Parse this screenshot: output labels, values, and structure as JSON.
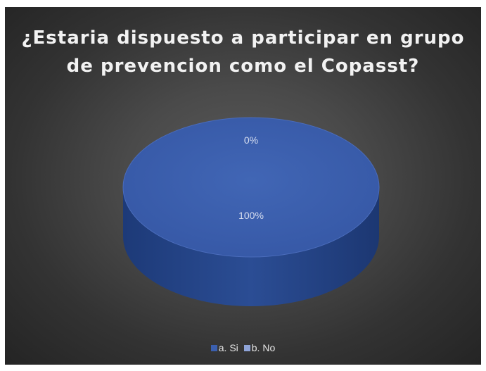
{
  "chart_data": {
    "type": "pie",
    "style": "3d",
    "title": "¿Estaria dispuesto a participar en grupo de prevencion como el Copasst?",
    "title_lines": [
      "¿Estaria dispuesto a participar en grupo",
      "de prevencion como el Copasst?"
    ],
    "categories": [
      "a. Si",
      "b. No"
    ],
    "values": [
      100,
      0
    ],
    "data_labels": [
      "100%",
      "0%"
    ],
    "colors": [
      "#3b5fae",
      "#8fa4d8"
    ],
    "legend_position": "bottom",
    "background": "#3f3f3f"
  }
}
